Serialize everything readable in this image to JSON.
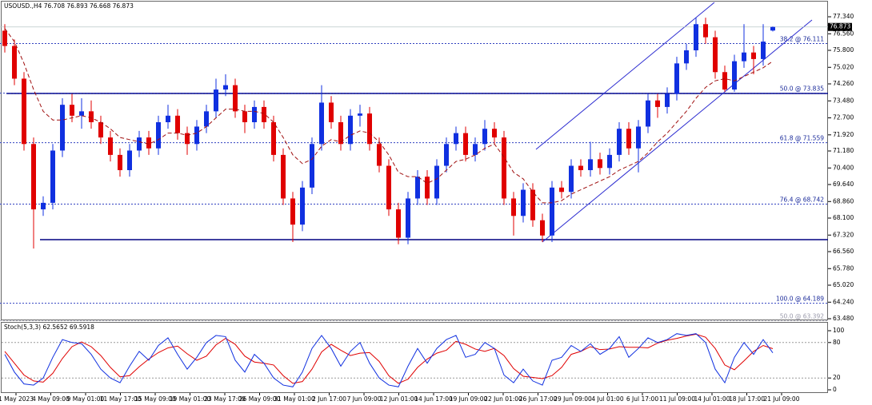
{
  "header": {
    "title": "USOUSD.,H4  76.708 76.893 76.668 76.873"
  },
  "price_axis": {
    "ticks": [
      {
        "value": 77.34,
        "label": "77.340"
      },
      {
        "value": 76.56,
        "label": "76.560"
      },
      {
        "value": 75.8,
        "label": "75.800"
      },
      {
        "value": 75.02,
        "label": "75.020"
      },
      {
        "value": 74.26,
        "label": "74.260"
      },
      {
        "value": 73.48,
        "label": "73.480"
      },
      {
        "value": 72.7,
        "label": "72.700"
      },
      {
        "value": 71.92,
        "label": "71.920"
      },
      {
        "value": 71.18,
        "label": "71.180"
      },
      {
        "value": 70.4,
        "label": "70.400"
      },
      {
        "value": 69.64,
        "label": "69.640"
      },
      {
        "value": 68.86,
        "label": "68.860"
      },
      {
        "value": 68.1,
        "label": "68.100"
      },
      {
        "value": 67.32,
        "label": "67.320"
      },
      {
        "value": 66.56,
        "label": "66.560"
      },
      {
        "value": 65.78,
        "label": "65.780"
      },
      {
        "value": 65.02,
        "label": "65.020"
      },
      {
        "value": 64.24,
        "label": "64.240"
      },
      {
        "value": 63.48,
        "label": "63.480"
      }
    ],
    "current": {
      "value": 76.873,
      "label": "76.873"
    }
  },
  "fib_levels": [
    {
      "value": 76.111,
      "label": "38.2 @ 76.111"
    },
    {
      "value": 73.835,
      "label": "50.0 @ 73.835"
    },
    {
      "value": 71.559,
      "label": "61.8 @ 71.559"
    },
    {
      "value": 68.742,
      "label": "76.4 @ 68.742"
    },
    {
      "value": 64.189,
      "label": "100.0 @ 64.189"
    },
    {
      "value": 63.392,
      "label": "50.0 @ 63.392"
    }
  ],
  "candles": [
    [
      76.7,
      77.0,
      75.7,
      76.0
    ],
    [
      76.0,
      76.3,
      74.2,
      74.5
    ],
    [
      74.5,
      74.8,
      71.2,
      71.5
    ],
    [
      71.5,
      71.8,
      66.7,
      68.5
    ],
    [
      68.5,
      69.1,
      68.2,
      68.8
    ],
    [
      68.8,
      71.5,
      68.5,
      71.2
    ],
    [
      71.2,
      73.6,
      70.9,
      73.3
    ],
    [
      73.3,
      73.8,
      72.5,
      72.8
    ],
    [
      72.8,
      73.6,
      72.2,
      73.0
    ],
    [
      73.0,
      73.5,
      72.2,
      72.5
    ],
    [
      72.5,
      72.8,
      71.5,
      71.8
    ],
    [
      71.8,
      72.1,
      70.7,
      71.0
    ],
    [
      71.0,
      71.3,
      70.0,
      70.3
    ],
    [
      70.3,
      71.5,
      70.0,
      71.2
    ],
    [
      71.2,
      72.1,
      70.9,
      71.8
    ],
    [
      71.8,
      72.1,
      71.0,
      71.3
    ],
    [
      71.3,
      72.8,
      71.0,
      72.5
    ],
    [
      72.5,
      73.3,
      72.2,
      72.8
    ],
    [
      72.8,
      73.1,
      71.7,
      72.0
    ],
    [
      72.0,
      72.3,
      71.0,
      71.5
    ],
    [
      71.5,
      72.6,
      71.2,
      72.3
    ],
    [
      72.3,
      73.3,
      72.0,
      73.0
    ],
    [
      73.0,
      74.5,
      72.7,
      74.0
    ],
    [
      74.0,
      74.7,
      73.7,
      74.2
    ],
    [
      74.2,
      74.5,
      72.7,
      73.0
    ],
    [
      73.0,
      73.3,
      72.0,
      72.5
    ],
    [
      72.5,
      73.5,
      72.2,
      73.2
    ],
    [
      73.2,
      73.5,
      72.2,
      72.5
    ],
    [
      72.5,
      72.8,
      70.7,
      71.0
    ],
    [
      71.0,
      71.3,
      68.7,
      69.0
    ],
    [
      69.0,
      69.3,
      67.0,
      67.8
    ],
    [
      67.8,
      69.8,
      67.5,
      69.5
    ],
    [
      69.5,
      71.8,
      69.2,
      71.5
    ],
    [
      71.5,
      74.2,
      71.2,
      73.4
    ],
    [
      73.4,
      73.7,
      72.2,
      72.5
    ],
    [
      72.5,
      72.8,
      71.2,
      71.5
    ],
    [
      71.5,
      73.1,
      71.2,
      72.8
    ],
    [
      72.8,
      73.3,
      72.3,
      72.9
    ],
    [
      72.9,
      73.2,
      71.2,
      71.5
    ],
    [
      71.5,
      71.8,
      70.2,
      70.5
    ],
    [
      70.5,
      70.8,
      68.2,
      68.5
    ],
    [
      68.5,
      68.8,
      66.9,
      67.2
    ],
    [
      67.2,
      69.3,
      66.9,
      69.0
    ],
    [
      69.0,
      70.3,
      68.7,
      70.0
    ],
    [
      70.0,
      70.3,
      68.7,
      69.0
    ],
    [
      69.0,
      70.8,
      68.7,
      70.5
    ],
    [
      70.5,
      71.8,
      70.2,
      71.5
    ],
    [
      71.5,
      72.3,
      71.2,
      72.0
    ],
    [
      72.0,
      72.3,
      70.7,
      71.0
    ],
    [
      71.0,
      71.8,
      70.7,
      71.5
    ],
    [
      71.5,
      72.6,
      71.2,
      72.2
    ],
    [
      72.2,
      72.5,
      71.5,
      71.8
    ],
    [
      71.8,
      72.1,
      68.7,
      69.0
    ],
    [
      69.0,
      69.3,
      67.3,
      68.2
    ],
    [
      68.2,
      69.7,
      67.9,
      69.4
    ],
    [
      69.4,
      69.7,
      67.7,
      68.0
    ],
    [
      68.0,
      68.3,
      67.0,
      67.3
    ],
    [
      67.3,
      69.8,
      67.0,
      69.5
    ],
    [
      69.5,
      69.8,
      69.0,
      69.3
    ],
    [
      69.3,
      70.8,
      69.0,
      70.5
    ],
    [
      70.5,
      70.8,
      70.0,
      70.3
    ],
    [
      70.3,
      71.6,
      70.0,
      70.8
    ],
    [
      70.8,
      71.1,
      70.1,
      70.4
    ],
    [
      70.4,
      71.3,
      70.1,
      71.0
    ],
    [
      71.0,
      72.5,
      70.7,
      72.2
    ],
    [
      72.2,
      72.5,
      71.0,
      71.3
    ],
    [
      71.3,
      72.6,
      70.2,
      72.3
    ],
    [
      72.3,
      73.8,
      72.0,
      73.5
    ],
    [
      73.5,
      73.8,
      72.7,
      73.2
    ],
    [
      73.2,
      74.1,
      72.9,
      73.8
    ],
    [
      73.8,
      75.5,
      73.5,
      75.2
    ],
    [
      75.2,
      76.1,
      74.9,
      75.8
    ],
    [
      75.8,
      77.3,
      75.5,
      77.0
    ],
    [
      77.0,
      77.3,
      76.1,
      76.4
    ],
    [
      76.4,
      76.7,
      74.5,
      74.8
    ],
    [
      74.8,
      75.1,
      73.9,
      74.0
    ],
    [
      74.0,
      75.6,
      73.9,
      75.3
    ],
    [
      75.3,
      77.0,
      75.0,
      75.7
    ],
    [
      75.7,
      76.0,
      74.7,
      75.4
    ],
    [
      75.4,
      77.0,
      75.1,
      76.2
    ],
    [
      76.708,
      76.893,
      76.668,
      76.873
    ]
  ],
  "moving_average": [
    76.8,
    76.2,
    75.2,
    74.0,
    73.0,
    72.6,
    72.6,
    72.7,
    72.8,
    72.7,
    72.5,
    72.2,
    71.8,
    71.7,
    71.6,
    71.5,
    71.7,
    72.0,
    72.0,
    71.9,
    72.0,
    72.3,
    72.7,
    73.1,
    73.1,
    73.0,
    73.0,
    72.9,
    72.5,
    71.8,
    71.0,
    70.6,
    70.8,
    71.4,
    71.7,
    71.6,
    71.9,
    72.1,
    72.0,
    71.6,
    71.0,
    70.2,
    70.0,
    70.0,
    69.7,
    69.9,
    70.3,
    70.7,
    70.8,
    71.0,
    71.3,
    71.5,
    70.9,
    70.2,
    69.9,
    69.3,
    68.8,
    68.8,
    68.9,
    69.2,
    69.4,
    69.6,
    69.8,
    70.0,
    70.3,
    70.5,
    70.7,
    71.1,
    71.6,
    72.0,
    72.5,
    73.0,
    73.6,
    74.1,
    74.4,
    74.5,
    74.4,
    74.6,
    74.8,
    75.0,
    75.3
  ],
  "stochastic": {
    "title": "Stoch(5,3,3) 62.5652 69.5918",
    "ticks": [
      100,
      80,
      20,
      0
    ],
    "main": [
      60,
      30,
      10,
      8,
      20,
      55,
      85,
      80,
      78,
      60,
      35,
      20,
      12,
      40,
      65,
      50,
      75,
      88,
      60,
      35,
      55,
      80,
      92,
      90,
      50,
      30,
      60,
      45,
      20,
      8,
      5,
      30,
      70,
      92,
      70,
      40,
      65,
      80,
      45,
      20,
      8,
      5,
      40,
      70,
      45,
      70,
      85,
      92,
      55,
      60,
      80,
      70,
      25,
      12,
      35,
      15,
      8,
      50,
      55,
      75,
      65,
      78,
      60,
      70,
      90,
      55,
      70,
      88,
      80,
      85,
      95,
      92,
      95,
      80,
      35,
      12,
      55,
      80,
      60,
      85,
      62.5652
    ],
    "signal": [
      65,
      45,
      25,
      15,
      13,
      28,
      53,
      73,
      81,
      73,
      58,
      38,
      22,
      24,
      39,
      52,
      63,
      71,
      74,
      61,
      50,
      57,
      76,
      87,
      77,
      57,
      47,
      45,
      42,
      24,
      11,
      14,
      35,
      64,
      77,
      67,
      58,
      62,
      63,
      48,
      24,
      11,
      18,
      38,
      52,
      62,
      67,
      82,
      77,
      69,
      65,
      70,
      58,
      36,
      23,
      21,
      19,
      24,
      38,
      60,
      65,
      73,
      68,
      69,
      73,
      72,
      72,
      71,
      79,
      84,
      87,
      91,
      94,
      89,
      70,
      42,
      34,
      49,
      65,
      75,
      69.5918
    ]
  },
  "time_axis": [
    "1 May 2023",
    "4 May 09:00",
    "9 May 01:00",
    "11 May 17:00",
    "15 May 09:00",
    "19 May 01:00",
    "23 May 17:00",
    "26 May 09:00",
    "31 May 01:00",
    "2 Jun 17:00",
    "7 Jun 09:00",
    "12 Jun 01:00",
    "14 Jun 17:00",
    "19 Jun 09:00",
    "22 Jun 01:00",
    "26 Jun 17:00",
    "29 Jun 09:00",
    "4 Jul 01:00",
    "6 Jul 17:00",
    "11 Jul 09:00",
    "14 Jul 01:00",
    "18 Jul 17:00",
    "21 Jul 09:00"
  ]
}
